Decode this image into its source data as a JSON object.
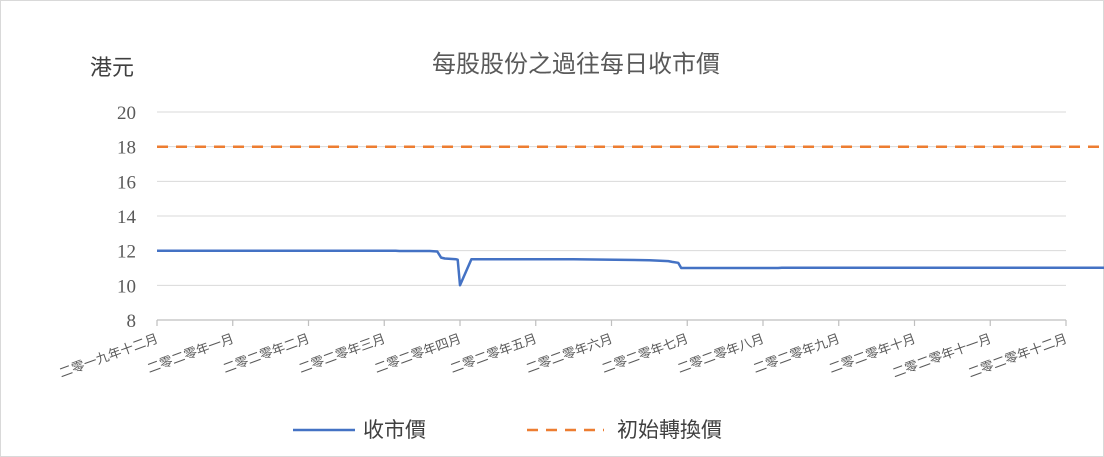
{
  "chart_data": {
    "type": "line",
    "title": "每股股份之過往每日收市價",
    "ylabel": "港元",
    "xlabel": "",
    "ylim": [
      8,
      20
    ],
    "yticks": [
      8,
      10,
      12,
      14,
      16,
      18,
      20
    ],
    "grid": true,
    "legend_position": "bottom",
    "categories": [
      "二零一九年十二月",
      "二零二零年一月",
      "二零二零年二月",
      "二零二零年三月",
      "二零二零年四月",
      "二零二零年五月",
      "二零二零年六月",
      "二零二零年七月",
      "二零二零年八月",
      "二零二零年九月",
      "二零二零年十月",
      "二零二零年十一月",
      "二零二零年十二月"
    ],
    "series": [
      {
        "name": "收市價",
        "color": "#4472C4",
        "style": "solid",
        "points": [
          [
            0,
            12.0
          ],
          [
            3.15,
            12.0
          ],
          [
            3.2,
            11.98
          ],
          [
            3.6,
            11.98
          ],
          [
            3.7,
            11.95
          ],
          [
            3.75,
            11.6
          ],
          [
            3.8,
            11.55
          ],
          [
            3.95,
            11.5
          ],
          [
            3.97,
            11.48
          ],
          [
            4.0,
            10.0
          ],
          [
            4.15,
            11.5
          ],
          [
            5.5,
            11.5
          ],
          [
            6.5,
            11.45
          ],
          [
            6.75,
            11.4
          ],
          [
            6.8,
            11.35
          ],
          [
            6.88,
            11.3
          ],
          [
            6.92,
            11.0
          ],
          [
            8.2,
            11.0
          ],
          [
            8.25,
            11.02
          ],
          [
            13.0,
            11.02
          ]
        ]
      },
      {
        "name": "初始轉換價",
        "color": "#ED7D31",
        "style": "dashed",
        "points": [
          [
            0,
            18.0
          ],
          [
            13.0,
            18.0
          ]
        ]
      }
    ]
  }
}
